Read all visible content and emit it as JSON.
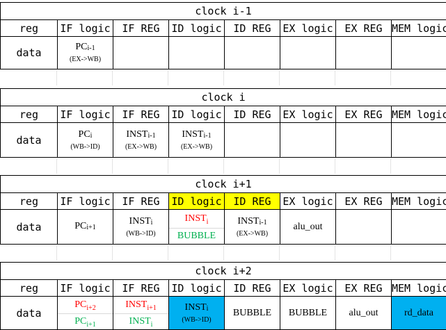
{
  "headers": [
    "reg",
    "IF logic",
    "IF REG",
    "ID logic",
    "ID REG",
    "EX logic",
    "EX REG",
    "MEM logic"
  ],
  "row_label": "data",
  "b0": {
    "title": "clock i-1",
    "pc": "PC",
    "pc_sub": "i-1",
    "pc_note": "(EX->WB)"
  },
  "b1": {
    "title": "clock i",
    "pc": "PC",
    "pc_sub": "i",
    "pc_note": "(WB->ID)",
    "inst1": "INST",
    "inst1_sub": "i-1",
    "inst1_note": "(EX->WB)",
    "inst2": "INST",
    "inst2_sub": "i-1",
    "inst2_note": "(EX->WB)"
  },
  "b2": {
    "title": "clock i+1",
    "pc": "PC",
    "pc_sub": "i+1",
    "ifreg": "INST",
    "ifreg_sub": "i",
    "ifreg_note": "(WB->ID)",
    "id_top": "INST",
    "id_top_sub": "i",
    "id_bot": "BUBBLE",
    "idreg": "INST",
    "idreg_sub": "i-1",
    "idreg_note": "(EX->WB)",
    "ex": "alu_out"
  },
  "b3": {
    "title": "clock i+2",
    "pc_top": "PC",
    "pc_top_sub": "i+2",
    "pc_bot": "PC",
    "pc_bot_sub": "i+1",
    "ifreg_top": "INST",
    "ifreg_top_sub": "i+1",
    "ifreg_bot": "INST",
    "ifreg_bot_sub": "i",
    "id": "INST",
    "id_sub": "i",
    "id_note": "(WB->ID)",
    "idreg": "BUBBLE",
    "ex": "BUBBLE",
    "exreg": "alu_out",
    "mem": "rd_data"
  },
  "colors": {
    "highlight_yellow": "#ffff00",
    "highlight_blue": "#00b0f0",
    "red": "#ff0000",
    "green": "#00b050"
  }
}
